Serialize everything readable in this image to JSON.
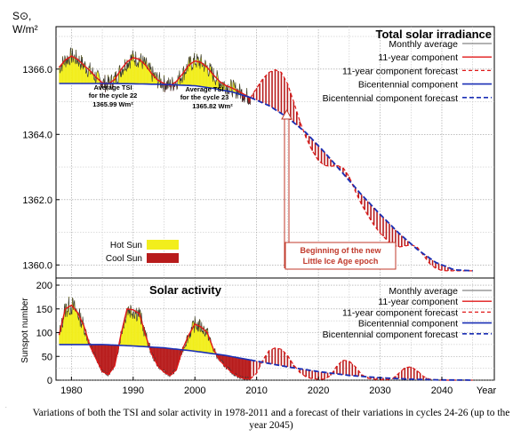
{
  "figure": {
    "caption": "Variations of both the TSI and solar activity in 1978-2011 and a forecast of their variations in cycles 24-26 (up to the year 2045)",
    "side_mark": "."
  },
  "colors": {
    "hot_sun": "#f2ee1c",
    "cool_sun": "#b81c1c",
    "monthly": "#333333",
    "eleven_year": "#e01818",
    "bicentennial": "#1a2fb5",
    "annotation": "#c0392b"
  },
  "chart_data": [
    {
      "type": "area",
      "title": "Total solar irradiance",
      "ylabel_line1": "S⊙,",
      "ylabel_line2": "W/m²",
      "xlim": [
        1977.5,
        2048.5
      ],
      "ylim": [
        1359.6,
        1367.3
      ],
      "yticks": [
        1360.0,
        1362.0,
        1364.0,
        1366.0
      ],
      "ytick_labels": [
        "1360.0",
        "1362.0",
        "1364.0",
        "1366.0"
      ],
      "grid": true,
      "legend_position": "top-right",
      "legend": [
        "Monthly average",
        "11-year component",
        "11-year component forecast",
        "Bicentennial component",
        "Bicentennial component forecast"
      ],
      "fill_legend": [
        "Hot Sun",
        "Cool Sun"
      ],
      "annotations": {
        "avg_cycle22": [
          "Average TSI",
          "for the cycle 22",
          "1365.99 Wm²"
        ],
        "avg_cycle23": [
          "Average TSI",
          "for the cycle 23",
          "1365.82 Wm²"
        ],
        "ice_age": [
          "Beginning of the new",
          "Little Ice Age epoch"
        ]
      },
      "series": {
        "bicentennial": {
          "x": [
            1978,
            1985,
            1990,
            1995,
            2000,
            2003,
            2006,
            2009,
            2012,
            2015,
            2018,
            2021,
            2024,
            2027,
            2030,
            2033,
            2036,
            2039,
            2042,
            2045
          ],
          "y": [
            1365.56,
            1365.56,
            1365.55,
            1365.53,
            1365.49,
            1365.41,
            1365.3,
            1365.13,
            1364.88,
            1364.52,
            1364.05,
            1363.45,
            1362.8,
            1362.15,
            1361.55,
            1360.98,
            1360.48,
            1360.08,
            1359.85,
            1359.82
          ]
        },
        "eleven_year": {
          "x": [
            1978,
            1979,
            1980,
            1981,
            1982,
            1983,
            1984,
            1985,
            1986,
            1987,
            1988,
            1989,
            1990,
            1991,
            1992,
            1993,
            1994,
            1995,
            1996,
            1997,
            1998,
            1999,
            2000,
            2001,
            2002,
            2003,
            2004,
            2005,
            2006,
            2007,
            2008,
            2009
          ],
          "y": [
            1366.05,
            1366.28,
            1366.4,
            1366.3,
            1366.12,
            1365.95,
            1365.75,
            1365.58,
            1365.55,
            1365.68,
            1365.98,
            1366.22,
            1366.35,
            1366.3,
            1366.12,
            1365.86,
            1365.66,
            1365.56,
            1365.5,
            1365.62,
            1365.85,
            1366.12,
            1366.25,
            1366.2,
            1366.05,
            1365.82,
            1365.62,
            1365.5,
            1365.42,
            1365.33,
            1365.22,
            1365.12
          ]
        },
        "eleven_year_forecast": {
          "x": [
            2009,
            2010,
            2011,
            2012,
            2013,
            2014,
            2015,
            2016,
            2017,
            2018,
            2019,
            2020,
            2021,
            2022,
            2023,
            2024,
            2025,
            2026,
            2027,
            2028,
            2029,
            2030,
            2031,
            2032,
            2033,
            2034,
            2035,
            2036,
            2037,
            2038,
            2039,
            2040,
            2041,
            2042,
            2043,
            2044,
            2045
          ],
          "y": [
            1365.12,
            1365.42,
            1365.7,
            1365.9,
            1365.98,
            1365.9,
            1365.55,
            1365.0,
            1364.4,
            1363.9,
            1363.5,
            1363.2,
            1363.05,
            1363.02,
            1363.05,
            1362.98,
            1362.7,
            1362.25,
            1361.85,
            1361.52,
            1361.22,
            1360.98,
            1360.78,
            1360.62,
            1360.55,
            1360.58,
            1360.62,
            1360.55,
            1360.3,
            1360.05,
            1359.9,
            1359.83,
            1359.82,
            1359.82,
            1359.82,
            1359.82,
            1359.82
          ]
        },
        "monthly_average": "noisy trace around the 11-year component, 1978-2009"
      }
    },
    {
      "type": "area",
      "title": "Solar activity",
      "ylabel": "Sunspot number",
      "xlim": [
        1977.5,
        2048.5
      ],
      "ylim": [
        0,
        215
      ],
      "yticks": [
        0,
        50,
        100,
        150,
        200
      ],
      "ytick_labels": [
        "0",
        "50",
        "100",
        "150",
        "200"
      ],
      "xticks": [
        1980,
        1990,
        2000,
        2010,
        2020,
        2030,
        2040
      ],
      "xtick_labels": [
        "1980",
        "1990",
        "2000",
        "2010",
        "2020",
        "2030",
        "2040"
      ],
      "xlabel": "Year",
      "grid": true,
      "legend_position": "top-right",
      "legend": [
        "Monthly average",
        "11-year component",
        "11-year component forecast",
        "Bicentennial component",
        "Bicentennial component forecast"
      ],
      "series": {
        "eleven_year": {
          "x": [
            1978,
            1979,
            1980,
            1981,
            1982,
            1983,
            1984,
            1985,
            1986,
            1987,
            1988,
            1989,
            1990,
            1991,
            1992,
            1993,
            1994,
            1995,
            1996,
            1997,
            1998,
            1999,
            2000,
            2001,
            2002,
            2003,
            2004,
            2005,
            2006,
            2007,
            2008,
            2009
          ],
          "y": [
            95,
            150,
            158,
            142,
            115,
            72,
            45,
            18,
            12,
            30,
            95,
            150,
            148,
            140,
            95,
            55,
            30,
            17,
            10,
            22,
            65,
            95,
            118,
            112,
            100,
            65,
            42,
            28,
            16,
            8,
            3,
            3
          ]
        },
        "eleven_year_forecast": {
          "x": [
            2009,
            2010,
            2011,
            2012,
            2013,
            2014,
            2015,
            2016,
            2017,
            2018,
            2019,
            2020,
            2021,
            2022,
            2023,
            2024,
            2025,
            2026,
            2027,
            2028,
            2029,
            2030,
            2031,
            2032,
            2033,
            2034,
            2035,
            2036,
            2037,
            2038,
            2039,
            2040,
            2041,
            2042,
            2043,
            2044,
            2045
          ],
          "y": [
            3,
            15,
            42,
            62,
            68,
            65,
            52,
            32,
            16,
            7,
            3,
            2,
            2,
            10,
            30,
            42,
            40,
            28,
            12,
            4,
            2,
            1,
            1,
            3,
            14,
            26,
            28,
            20,
            8,
            2,
            1,
            0,
            0,
            0,
            0,
            0,
            0
          ]
        },
        "bicentennial": {
          "x": [
            1978,
            1985,
            1990,
            1995,
            2000,
            2005,
            2010,
            2015,
            2020,
            2025,
            2030,
            2035,
            2040,
            2045
          ],
          "y": [
            75,
            75,
            72,
            68,
            61,
            52,
            40,
            28,
            18,
            10,
            5,
            2,
            0.5,
            0
          ]
        },
        "monthly_average": "noisy trace around the 11-year component, 1978-2009"
      }
    }
  ]
}
